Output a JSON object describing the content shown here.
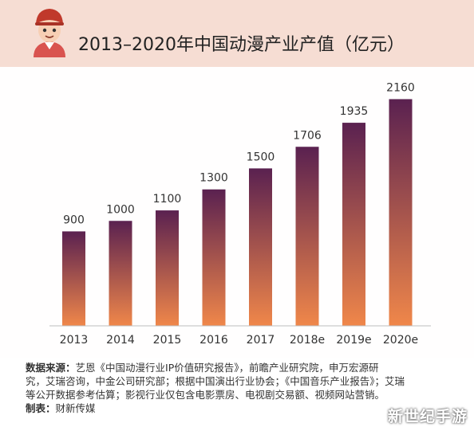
{
  "colors": {
    "header_bg": "#f6ddd3",
    "bar_top": "#5a2150",
    "bar_bottom": "#f0874a",
    "axis": "#bdbdbd",
    "text": "#333333"
  },
  "header": {
    "avatar_icon": "cartoon-character-icon"
  },
  "chart_data": {
    "type": "bar",
    "title": "2013–2020年中国动漫产业产值（亿元）",
    "categories": [
      "2013",
      "2014",
      "2015",
      "2016",
      "2017",
      "2018e",
      "2019e",
      "2020e"
    ],
    "values": [
      900,
      1000,
      1100,
      1300,
      1500,
      1706,
      1935,
      2160
    ],
    "value_labels": [
      "900",
      "1000",
      "1100",
      "1300",
      "1500",
      "1706",
      "1935",
      "2160"
    ],
    "ylim": [
      0,
      2300
    ],
    "grid": false,
    "legend": "none"
  },
  "footnote": {
    "source_label": "数据来源：",
    "source_line1": "艺恩《中国动漫行业IP价值研究报告》，前瞻产业研究院，申万宏源研",
    "source_line2": "究，艾瑞咨询，中金公司研究部；根据中国演出行业协会；《中国音乐产业报告》；艾瑞",
    "source_line3": "等公开数据参考估算；影视行业仅包含电影票房、电视剧交易额、视频网站营销。",
    "maker_label": "制表：",
    "maker_value": "财新传媒"
  },
  "watermark": "新世纪手游"
}
